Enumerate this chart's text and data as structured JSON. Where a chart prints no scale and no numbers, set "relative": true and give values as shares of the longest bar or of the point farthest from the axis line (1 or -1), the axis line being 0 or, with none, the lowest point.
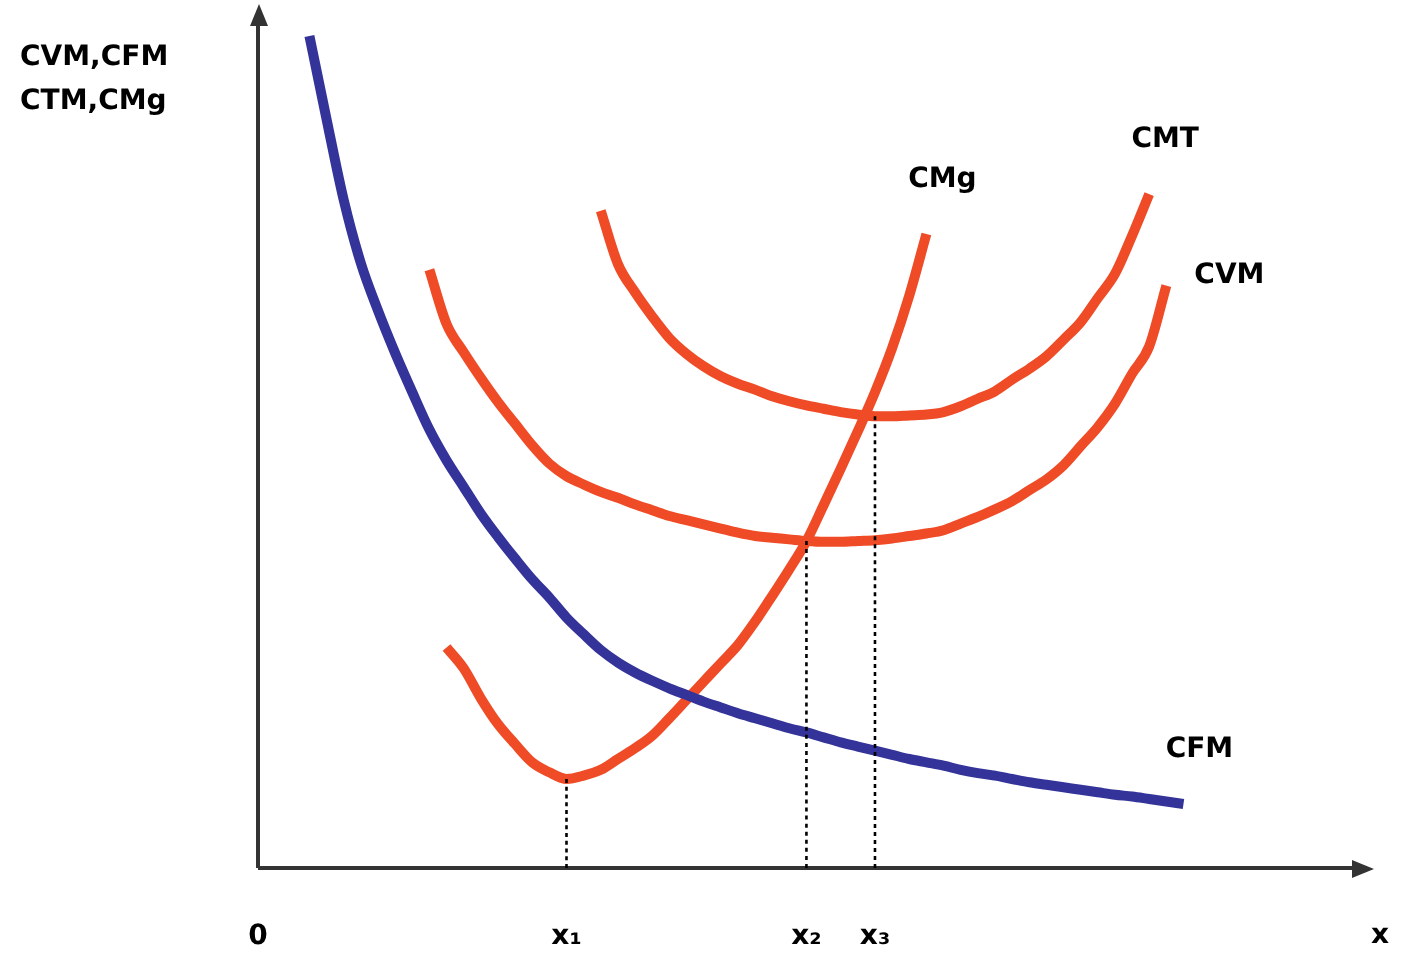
{
  "chart_data": {
    "type": "line",
    "relative": true,
    "ylabel": "CVM,CFM\nCTM,CMg",
    "xlabel": "x",
    "marker": "none",
    "categories": [
      "0",
      null,
      null,
      null,
      null,
      null,
      null,
      null,
      null,
      null,
      null,
      null,
      null,
      null,
      null,
      null,
      null,
      null,
      "x₁",
      null,
      null,
      null,
      null,
      null,
      null,
      null,
      null,
      null,
      null,
      null,
      null,
      null,
      "x₂",
      null,
      null,
      null,
      "x₃",
      null,
      null,
      null,
      null,
      null,
      null,
      null,
      null,
      null,
      null,
      null,
      null,
      null,
      null,
      null,
      null,
      null,
      null,
      null,
      null,
      null,
      null,
      null,
      null,
      null,
      null,
      null,
      null,
      null
    ],
    "series": [
      {
        "name": "CVM",
        "color": "#ef4b26",
        "values": [
          null,
          null,
          null,
          null,
          null,
          null,
          null,
          null,
          null,
          null,
          0.719,
          0.654,
          0.62,
          0.589,
          0.56,
          0.534,
          0.508,
          0.486,
          0.471,
          0.461,
          0.452,
          0.445,
          0.437,
          0.43,
          0.423,
          0.418,
          0.413,
          0.408,
          0.403,
          0.399,
          0.397,
          0.395,
          0.393,
          0.392,
          0.392,
          0.393,
          0.394,
          0.396,
          0.399,
          0.402,
          0.406,
          0.414,
          0.422,
          0.431,
          0.441,
          0.454,
          0.467,
          0.484,
          0.507,
          0.53,
          0.558,
          0.594,
          0.627,
          0.7,
          null,
          null,
          null,
          null,
          null,
          null,
          null,
          null,
          null,
          null,
          null,
          null
        ]
      },
      {
        "name": "CFM",
        "color": "#333399",
        "values": [
          null,
          null,
          null,
          1.0,
          0.9,
          0.803,
          0.727,
          0.67,
          0.619,
          0.572,
          0.527,
          0.49,
          0.458,
          0.426,
          0.398,
          0.372,
          0.347,
          0.325,
          0.301,
          0.281,
          0.262,
          0.247,
          0.235,
          0.225,
          0.216,
          0.208,
          0.2,
          0.193,
          0.186,
          0.18,
          0.174,
          0.168,
          0.163,
          0.157,
          0.151,
          0.146,
          0.141,
          0.136,
          0.131,
          0.127,
          0.123,
          0.118,
          0.114,
          0.111,
          0.107,
          0.103,
          0.1,
          0.097,
          0.094,
          0.091,
          0.088,
          0.086,
          0.083,
          0.08,
          0.077,
          null,
          null,
          null,
          null,
          null,
          null,
          null,
          null,
          null,
          null,
          null
        ]
      },
      {
        "name": "CMT",
        "color": "#ef4b26",
        "values": [
          null,
          null,
          null,
          null,
          null,
          null,
          null,
          null,
          null,
          null,
          null,
          null,
          null,
          null,
          null,
          null,
          null,
          null,
          null,
          null,
          0.79,
          0.726,
          0.692,
          0.663,
          0.637,
          0.618,
          0.603,
          0.591,
          0.582,
          0.575,
          0.567,
          0.561,
          0.556,
          0.552,
          0.548,
          0.545,
          0.543,
          0.543,
          0.544,
          0.545,
          0.548,
          0.555,
          0.564,
          0.573,
          0.587,
          0.6,
          0.615,
          0.635,
          0.656,
          0.685,
          0.714,
          0.76,
          0.81,
          null,
          null,
          null,
          null,
          null,
          null,
          null,
          null,
          null,
          null,
          null,
          null,
          null
        ]
      },
      {
        "name": "CMg",
        "color": "#ef4b26",
        "values": [
          null,
          null,
          null,
          null,
          null,
          null,
          null,
          null,
          null,
          null,
          null,
          0.265,
          0.24,
          0.204,
          0.173,
          0.149,
          0.127,
          0.115,
          0.107,
          0.111,
          0.118,
          0.131,
          0.144,
          0.159,
          0.18,
          0.202,
          0.224,
          0.246,
          0.268,
          0.296,
          0.327,
          0.359,
          0.393,
          0.436,
          0.48,
          0.525,
          0.572,
          0.625,
          0.688,
          0.762,
          null,
          null,
          null,
          null,
          null,
          null,
          null,
          null,
          null,
          null,
          null,
          null,
          null,
          null,
          null,
          null,
          null,
          null,
          null,
          null,
          null,
          null,
          null,
          null,
          null,
          null
        ]
      },
      {
        "color": "#000000",
        "line_style": "dotted",
        "x": [
          "x₁",
          "x₁"
        ],
        "values": [
          0,
          0.107
        ]
      },
      {
        "color": "#000000",
        "line_style": "dotted",
        "x": [
          "x₂",
          "x₂"
        ],
        "values": [
          0,
          0.393
        ]
      },
      {
        "color": "#000000",
        "line_style": "dotted",
        "x": [
          "x₃",
          "x₃"
        ],
        "values": [
          0,
          0.543
        ]
      }
    ]
  }
}
